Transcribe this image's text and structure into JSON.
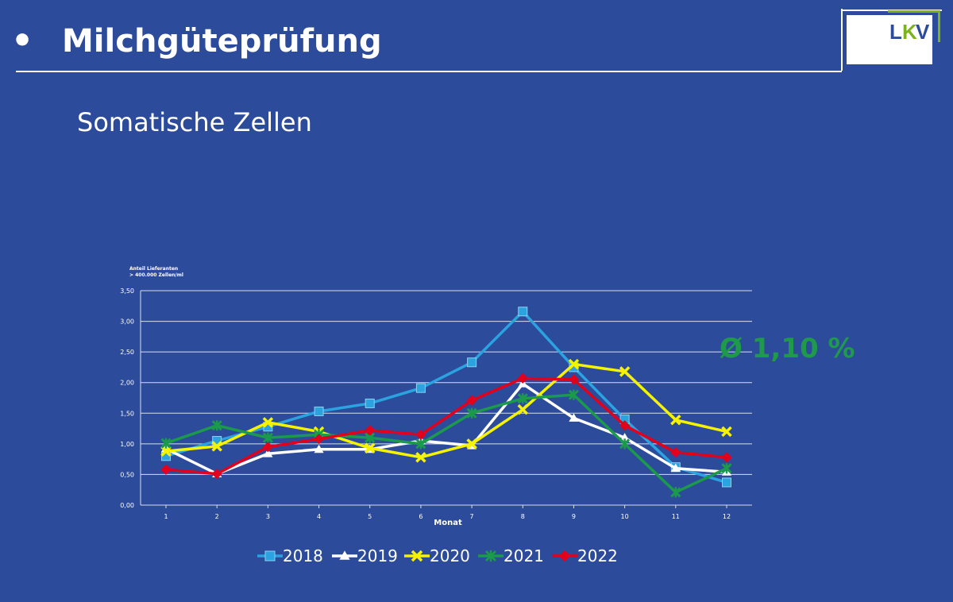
{
  "header": {
    "bullet": "•",
    "title": "Milchgüteprüfung",
    "logo": {
      "text_l": "L",
      "text_k": "K",
      "text_v": "V"
    }
  },
  "subtitle": "Somatische Zellen",
  "average_label": "Ø 1,10 %",
  "colors": {
    "background": "#2d4b9b",
    "s2018": "#2aa3e0",
    "s2019": "#ffffff",
    "s2020": "#f5f300",
    "s2021": "#1a9a4a",
    "s2022": "#e3001b",
    "accent_green": "#1f9a4a",
    "logo_green": "#7cb21b"
  },
  "chart_data": {
    "type": "line",
    "ylabel_lines": [
      "Anteil Lieferanten",
      "> 400.000 Zellen/ml"
    ],
    "xlabel": "Monat",
    "categories": [
      "1",
      "2",
      "3",
      "4",
      "5",
      "6",
      "7",
      "8",
      "9",
      "10",
      "11",
      "12"
    ],
    "ylim": [
      0,
      3.5
    ],
    "yticks": [
      0,
      0.5,
      1.0,
      1.5,
      2.0,
      2.5,
      3.0,
      3.5
    ],
    "ytick_labels": [
      "0,00",
      "0,50",
      "1,00",
      "1,50",
      "2,00",
      "2,50",
      "3,00",
      "3,50"
    ],
    "grid": true,
    "series": [
      {
        "name": "2018",
        "marker": "square",
        "color": "#2aa3e0",
        "values": [
          0.8,
          1.05,
          1.28,
          1.53,
          1.66,
          1.91,
          2.33,
          3.16,
          2.25,
          1.4,
          0.62,
          0.37
        ]
      },
      {
        "name": "2019",
        "marker": "triangle",
        "color": "#ffffff",
        "values": [
          0.92,
          0.51,
          0.84,
          0.91,
          0.91,
          1.05,
          0.97,
          1.98,
          1.42,
          1.1,
          0.6,
          0.54
        ]
      },
      {
        "name": "2020",
        "marker": "x",
        "color": "#f5f300",
        "values": [
          0.88,
          0.96,
          1.35,
          1.2,
          0.93,
          0.78,
          1.0,
          1.56,
          2.3,
          2.18,
          1.39,
          1.2
        ]
      },
      {
        "name": "2021",
        "marker": "star",
        "color": "#1a9a4a",
        "values": [
          1.01,
          1.3,
          1.1,
          1.15,
          1.1,
          1.0,
          1.5,
          1.74,
          1.8,
          1.0,
          0.21,
          0.6
        ]
      },
      {
        "name": "2022",
        "marker": "diamond",
        "color": "#e3001b",
        "values": [
          0.58,
          0.51,
          0.95,
          1.08,
          1.22,
          1.15,
          1.71,
          2.07,
          2.05,
          1.3,
          0.86,
          0.78
        ]
      }
    ],
    "legend": [
      "2018",
      "2019",
      "2020",
      "2021",
      "2022"
    ]
  }
}
